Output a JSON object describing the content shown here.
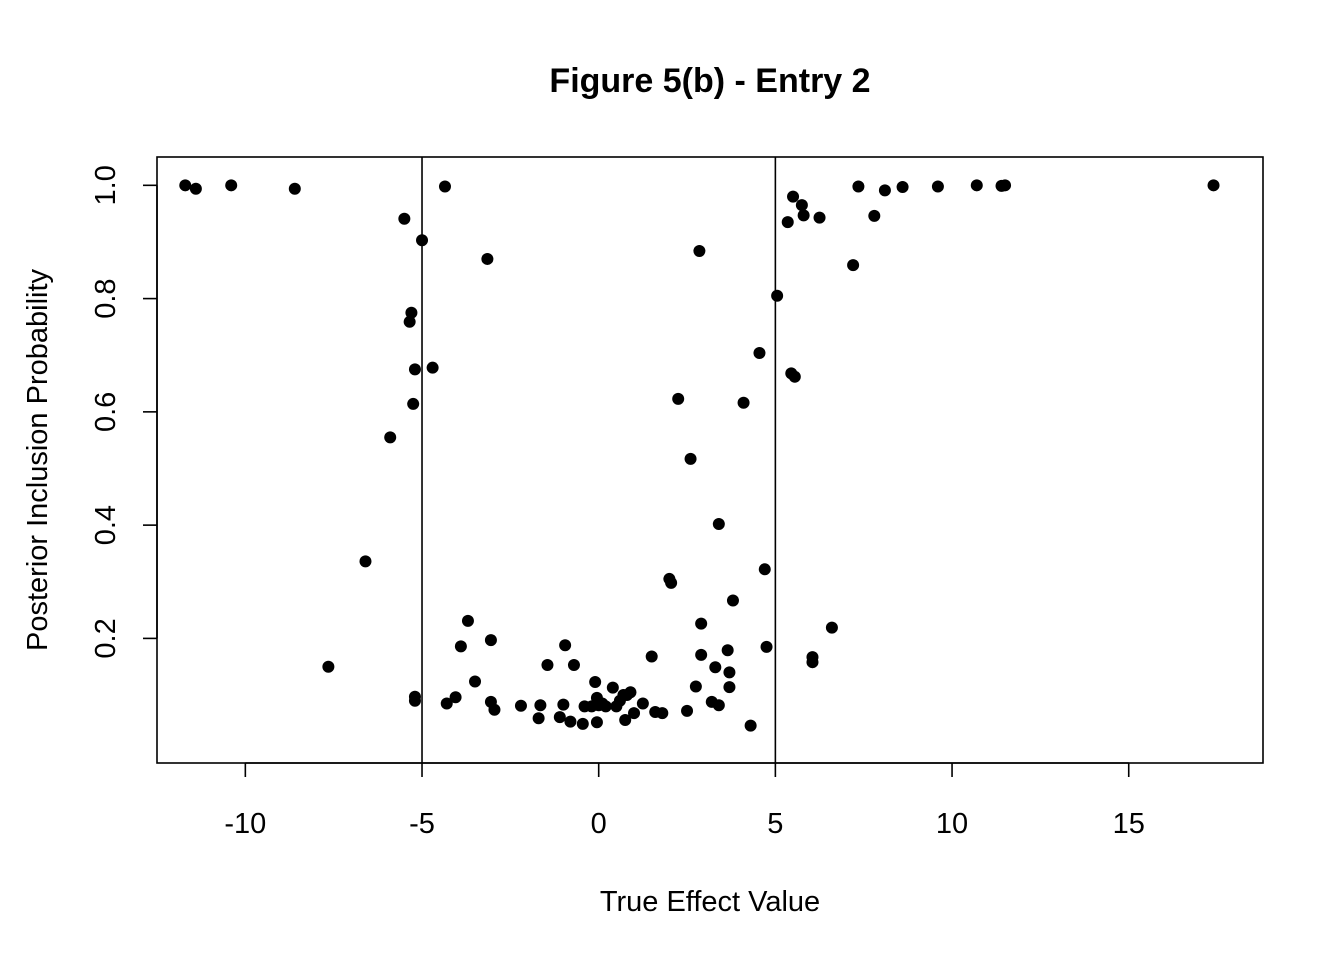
{
  "chart_data": {
    "type": "scatter",
    "title": "Figure 5(b) - Entry 2",
    "xlabel": "True Effect Value",
    "ylabel": "Posterior Inclusion Probability",
    "xlim": [
      -12.5,
      18.8
    ],
    "ylim": [
      -0.02,
      1.05
    ],
    "xticks": [
      -10,
      -5,
      0,
      5,
      10,
      15
    ],
    "xtick_labels": [
      "-10",
      "-5",
      "0",
      "5",
      "10",
      "15"
    ],
    "yticks": [
      0.2,
      0.4,
      0.6,
      0.8,
      1.0
    ],
    "ytick_labels": [
      "0.2",
      "0.4",
      "0.6",
      "0.8",
      "1.0"
    ],
    "vlines": [
      -5,
      5
    ],
    "grid": false,
    "legend": "none",
    "point_color": "#000000",
    "points": [
      {
        "x": -11.7,
        "y": 1.0
      },
      {
        "x": -11.4,
        "y": 0.994
      },
      {
        "x": -10.4,
        "y": 1.0
      },
      {
        "x": -8.6,
        "y": 0.994
      },
      {
        "x": -7.65,
        "y": 0.15
      },
      {
        "x": -6.6,
        "y": 0.336
      },
      {
        "x": -5.9,
        "y": 0.555
      },
      {
        "x": -5.5,
        "y": 0.941
      },
      {
        "x": -5.35,
        "y": 0.759
      },
      {
        "x": -5.3,
        "y": 0.775
      },
      {
        "x": -5.25,
        "y": 0.614
      },
      {
        "x": -5.2,
        "y": 0.675
      },
      {
        "x": -5.2,
        "y": 0.097
      },
      {
        "x": -5.2,
        "y": 0.09
      },
      {
        "x": -5.0,
        "y": 0.903
      },
      {
        "x": -4.7,
        "y": 0.678
      },
      {
        "x": -4.35,
        "y": 0.998
      },
      {
        "x": -4.3,
        "y": 0.085
      },
      {
        "x": -4.05,
        "y": 0.096
      },
      {
        "x": -3.9,
        "y": 0.186
      },
      {
        "x": -3.7,
        "y": 0.231
      },
      {
        "x": -3.5,
        "y": 0.124
      },
      {
        "x": -3.15,
        "y": 0.87
      },
      {
        "x": -3.05,
        "y": 0.197
      },
      {
        "x": -3.05,
        "y": 0.088
      },
      {
        "x": -2.95,
        "y": 0.074
      },
      {
        "x": -2.2,
        "y": 0.081
      },
      {
        "x": -1.7,
        "y": 0.059
      },
      {
        "x": -1.65,
        "y": 0.082
      },
      {
        "x": -1.45,
        "y": 0.153
      },
      {
        "x": -1.1,
        "y": 0.061
      },
      {
        "x": -1.0,
        "y": 0.083
      },
      {
        "x": -0.95,
        "y": 0.188
      },
      {
        "x": -0.8,
        "y": 0.053
      },
      {
        "x": -0.7,
        "y": 0.153
      },
      {
        "x": -0.45,
        "y": 0.049
      },
      {
        "x": -0.4,
        "y": 0.08
      },
      {
        "x": -0.2,
        "y": 0.08
      },
      {
        "x": -0.1,
        "y": 0.123
      },
      {
        "x": -0.05,
        "y": 0.095
      },
      {
        "x": -0.05,
        "y": 0.052
      },
      {
        "x": 0.0,
        "y": 0.082
      },
      {
        "x": 0.1,
        "y": 0.085
      },
      {
        "x": 0.2,
        "y": 0.08
      },
      {
        "x": 0.4,
        "y": 0.113
      },
      {
        "x": 0.5,
        "y": 0.08
      },
      {
        "x": 0.6,
        "y": 0.09
      },
      {
        "x": 0.7,
        "y": 0.1
      },
      {
        "x": 0.75,
        "y": 0.056
      },
      {
        "x": 0.8,
        "y": 0.1
      },
      {
        "x": 0.9,
        "y": 0.105
      },
      {
        "x": 1.0,
        "y": 0.068
      },
      {
        "x": 1.25,
        "y": 0.085
      },
      {
        "x": 1.5,
        "y": 0.168
      },
      {
        "x": 1.6,
        "y": 0.07
      },
      {
        "x": 1.8,
        "y": 0.068
      },
      {
        "x": 2.0,
        "y": 0.305
      },
      {
        "x": 2.05,
        "y": 0.298
      },
      {
        "x": 2.25,
        "y": 0.623
      },
      {
        "x": 2.5,
        "y": 0.072
      },
      {
        "x": 2.6,
        "y": 0.517
      },
      {
        "x": 2.75,
        "y": 0.115
      },
      {
        "x": 2.85,
        "y": 0.884
      },
      {
        "x": 2.9,
        "y": 0.226
      },
      {
        "x": 2.9,
        "y": 0.171
      },
      {
        "x": 3.2,
        "y": 0.088
      },
      {
        "x": 3.3,
        "y": 0.149
      },
      {
        "x": 3.4,
        "y": 0.402
      },
      {
        "x": 3.4,
        "y": 0.082
      },
      {
        "x": 3.65,
        "y": 0.179
      },
      {
        "x": 3.7,
        "y": 0.14
      },
      {
        "x": 3.7,
        "y": 0.114
      },
      {
        "x": 3.8,
        "y": 0.267
      },
      {
        "x": 4.1,
        "y": 0.616
      },
      {
        "x": 4.3,
        "y": 0.046
      },
      {
        "x": 4.55,
        "y": 0.704
      },
      {
        "x": 4.7,
        "y": 0.322
      },
      {
        "x": 4.75,
        "y": 0.185
      },
      {
        "x": 5.05,
        "y": 0.805
      },
      {
        "x": 5.35,
        "y": 0.935
      },
      {
        "x": 5.45,
        "y": 0.668
      },
      {
        "x": 5.5,
        "y": 0.98
      },
      {
        "x": 5.55,
        "y": 0.662
      },
      {
        "x": 5.75,
        "y": 0.965
      },
      {
        "x": 5.8,
        "y": 0.947
      },
      {
        "x": 6.05,
        "y": 0.167
      },
      {
        "x": 6.05,
        "y": 0.158
      },
      {
        "x": 6.25,
        "y": 0.943
      },
      {
        "x": 6.6,
        "y": 0.219
      },
      {
        "x": 7.2,
        "y": 0.859
      },
      {
        "x": 7.35,
        "y": 0.998
      },
      {
        "x": 7.8,
        "y": 0.946
      },
      {
        "x": 8.1,
        "y": 0.991
      },
      {
        "x": 8.6,
        "y": 0.997
      },
      {
        "x": 9.6,
        "y": 0.998
      },
      {
        "x": 10.7,
        "y": 1.0
      },
      {
        "x": 11.4,
        "y": 0.999
      },
      {
        "x": 11.5,
        "y": 1.0
      },
      {
        "x": 17.4,
        "y": 1.0
      }
    ]
  }
}
